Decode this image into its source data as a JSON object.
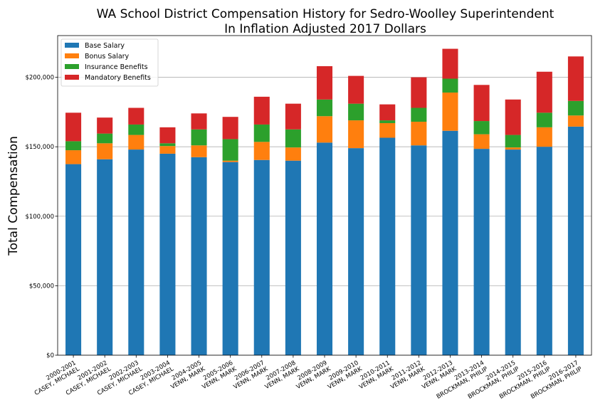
{
  "chart_data": {
    "type": "bar",
    "stacked": true,
    "title": "WA School District Compensation History for Sedro-Woolley Superintendent",
    "subtitle": "In Inflation Adjusted 2017 Dollars",
    "xlabel": "",
    "ylabel": "Total Compensation",
    "ylim": [
      0,
      230000
    ],
    "yticks": [
      0,
      50000,
      100000,
      150000,
      200000
    ],
    "ytick_labels": [
      "$0",
      "$50,000",
      "$100,000",
      "$150,000",
      "$200,000"
    ],
    "grid": "horizontal",
    "legend_position": "top-left",
    "categories": [
      [
        "2000-2001",
        "CASEY, MICHAEL"
      ],
      [
        "2001-2002",
        "CASEY, MICHAEL"
      ],
      [
        "2002-2003",
        "CASEY, MICHAEL"
      ],
      [
        "2003-2004",
        "CASEY, MICHAEL"
      ],
      [
        "2004-2005",
        "VENN, MARK"
      ],
      [
        "2005-2006",
        "VENN, MARK"
      ],
      [
        "2006-2007",
        "VENN, MARK"
      ],
      [
        "2007-2008",
        "VENN, MARK"
      ],
      [
        "2008-2009",
        "VENN, MARK"
      ],
      [
        "2009-2010",
        "VENN, MARK"
      ],
      [
        "2010-2011",
        "VENN, MARK"
      ],
      [
        "2011-2012",
        "VENN, MARK"
      ],
      [
        "2012-2013",
        "VENN, MARK"
      ],
      [
        "2013-2014",
        "BROCKMAN, PHILIP"
      ],
      [
        "2014-2015",
        "BROCKMAN, PHILIP"
      ],
      [
        "2015-2016",
        "BROCKMAN, PHILIP"
      ],
      [
        "2016-2017",
        "BROCKMAN, PHILIP"
      ]
    ],
    "series": [
      {
        "name": "Base Salary",
        "color": "#1f77b4",
        "values": [
          137500,
          141000,
          148000,
          145000,
          142500,
          139000,
          140500,
          140000,
          153000,
          149000,
          156500,
          151000,
          161500,
          148500,
          148000,
          150000,
          164500
        ]
      },
      {
        "name": "Bonus Salary",
        "color": "#ff7f0e",
        "values": [
          10000,
          11500,
          10500,
          5500,
          8500,
          1000,
          13000,
          9500,
          19000,
          20000,
          10500,
          17000,
          27500,
          10500,
          1500,
          14000,
          8000
        ]
      },
      {
        "name": "Insurance Benefits",
        "color": "#2ca02c",
        "values": [
          6500,
          7000,
          7500,
          2000,
          11500,
          15500,
          12500,
          13000,
          12000,
          12000,
          2000,
          10000,
          10000,
          9500,
          9000,
          10500,
          10500
        ]
      },
      {
        "name": "Mandatory Benefits",
        "color": "#d62728",
        "values": [
          20500,
          11500,
          12000,
          11500,
          11500,
          16000,
          20000,
          18500,
          24000,
          20000,
          11500,
          22000,
          21500,
          26000,
          25500,
          29500,
          32000
        ]
      }
    ]
  }
}
